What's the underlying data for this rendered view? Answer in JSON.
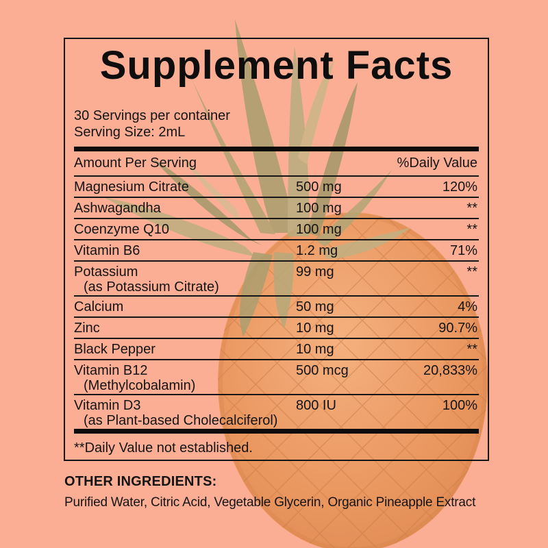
{
  "label": {
    "title": "Supplement Facts",
    "servings_per_container": "30 Servings per container",
    "serving_size": "Serving Size: 2mL",
    "header": {
      "amount": "Amount Per Serving",
      "daily_value": "%Daily Value"
    },
    "rows": [
      {
        "name": "Magnesium Citrate",
        "amount": "500 mg",
        "dv": "120%"
      },
      {
        "name": "Ashwagandha",
        "amount": "100 mg",
        "dv": "**"
      },
      {
        "name": "Coenzyme Q10",
        "amount": "100 mg",
        "dv": "**"
      },
      {
        "name": "Vitamin B6",
        "amount": "1.2 mg",
        "dv": "71%"
      },
      {
        "name": "Potassium",
        "sub": "(as Potassium Citrate)",
        "amount": "99 mg",
        "dv": "**"
      },
      {
        "name": "Calcium",
        "amount": "50 mg",
        "dv": "4%"
      },
      {
        "name": "Zinc",
        "amount": "10 mg",
        "dv": "90.7%"
      },
      {
        "name": "Black Pepper",
        "amount": "10 mg",
        "dv": "**"
      },
      {
        "name": "Vitamin B12",
        "sub": "(Methylcobalamin)",
        "amount": "500 mcg",
        "dv": "20,833%"
      },
      {
        "name": "Vitamin D3",
        "sub": "(as Plant-based Cholecalciferol)",
        "amount": "800 IU",
        "dv": "100%"
      }
    ],
    "footnote": "**Daily Value not established."
  },
  "other_ingredients": {
    "heading": "OTHER INGREDIENTS:",
    "text": "Purified Water, Citric Acid, Vegetable Glycerin, Organic Pineapple Extract"
  },
  "colors": {
    "background": "#fbae94",
    "line": "#161616",
    "text": "#141414",
    "pineapple_body": "#e79354",
    "pineapple_body_dark": "#bf6f33",
    "pineapple_leaf": "#a89e6e"
  }
}
